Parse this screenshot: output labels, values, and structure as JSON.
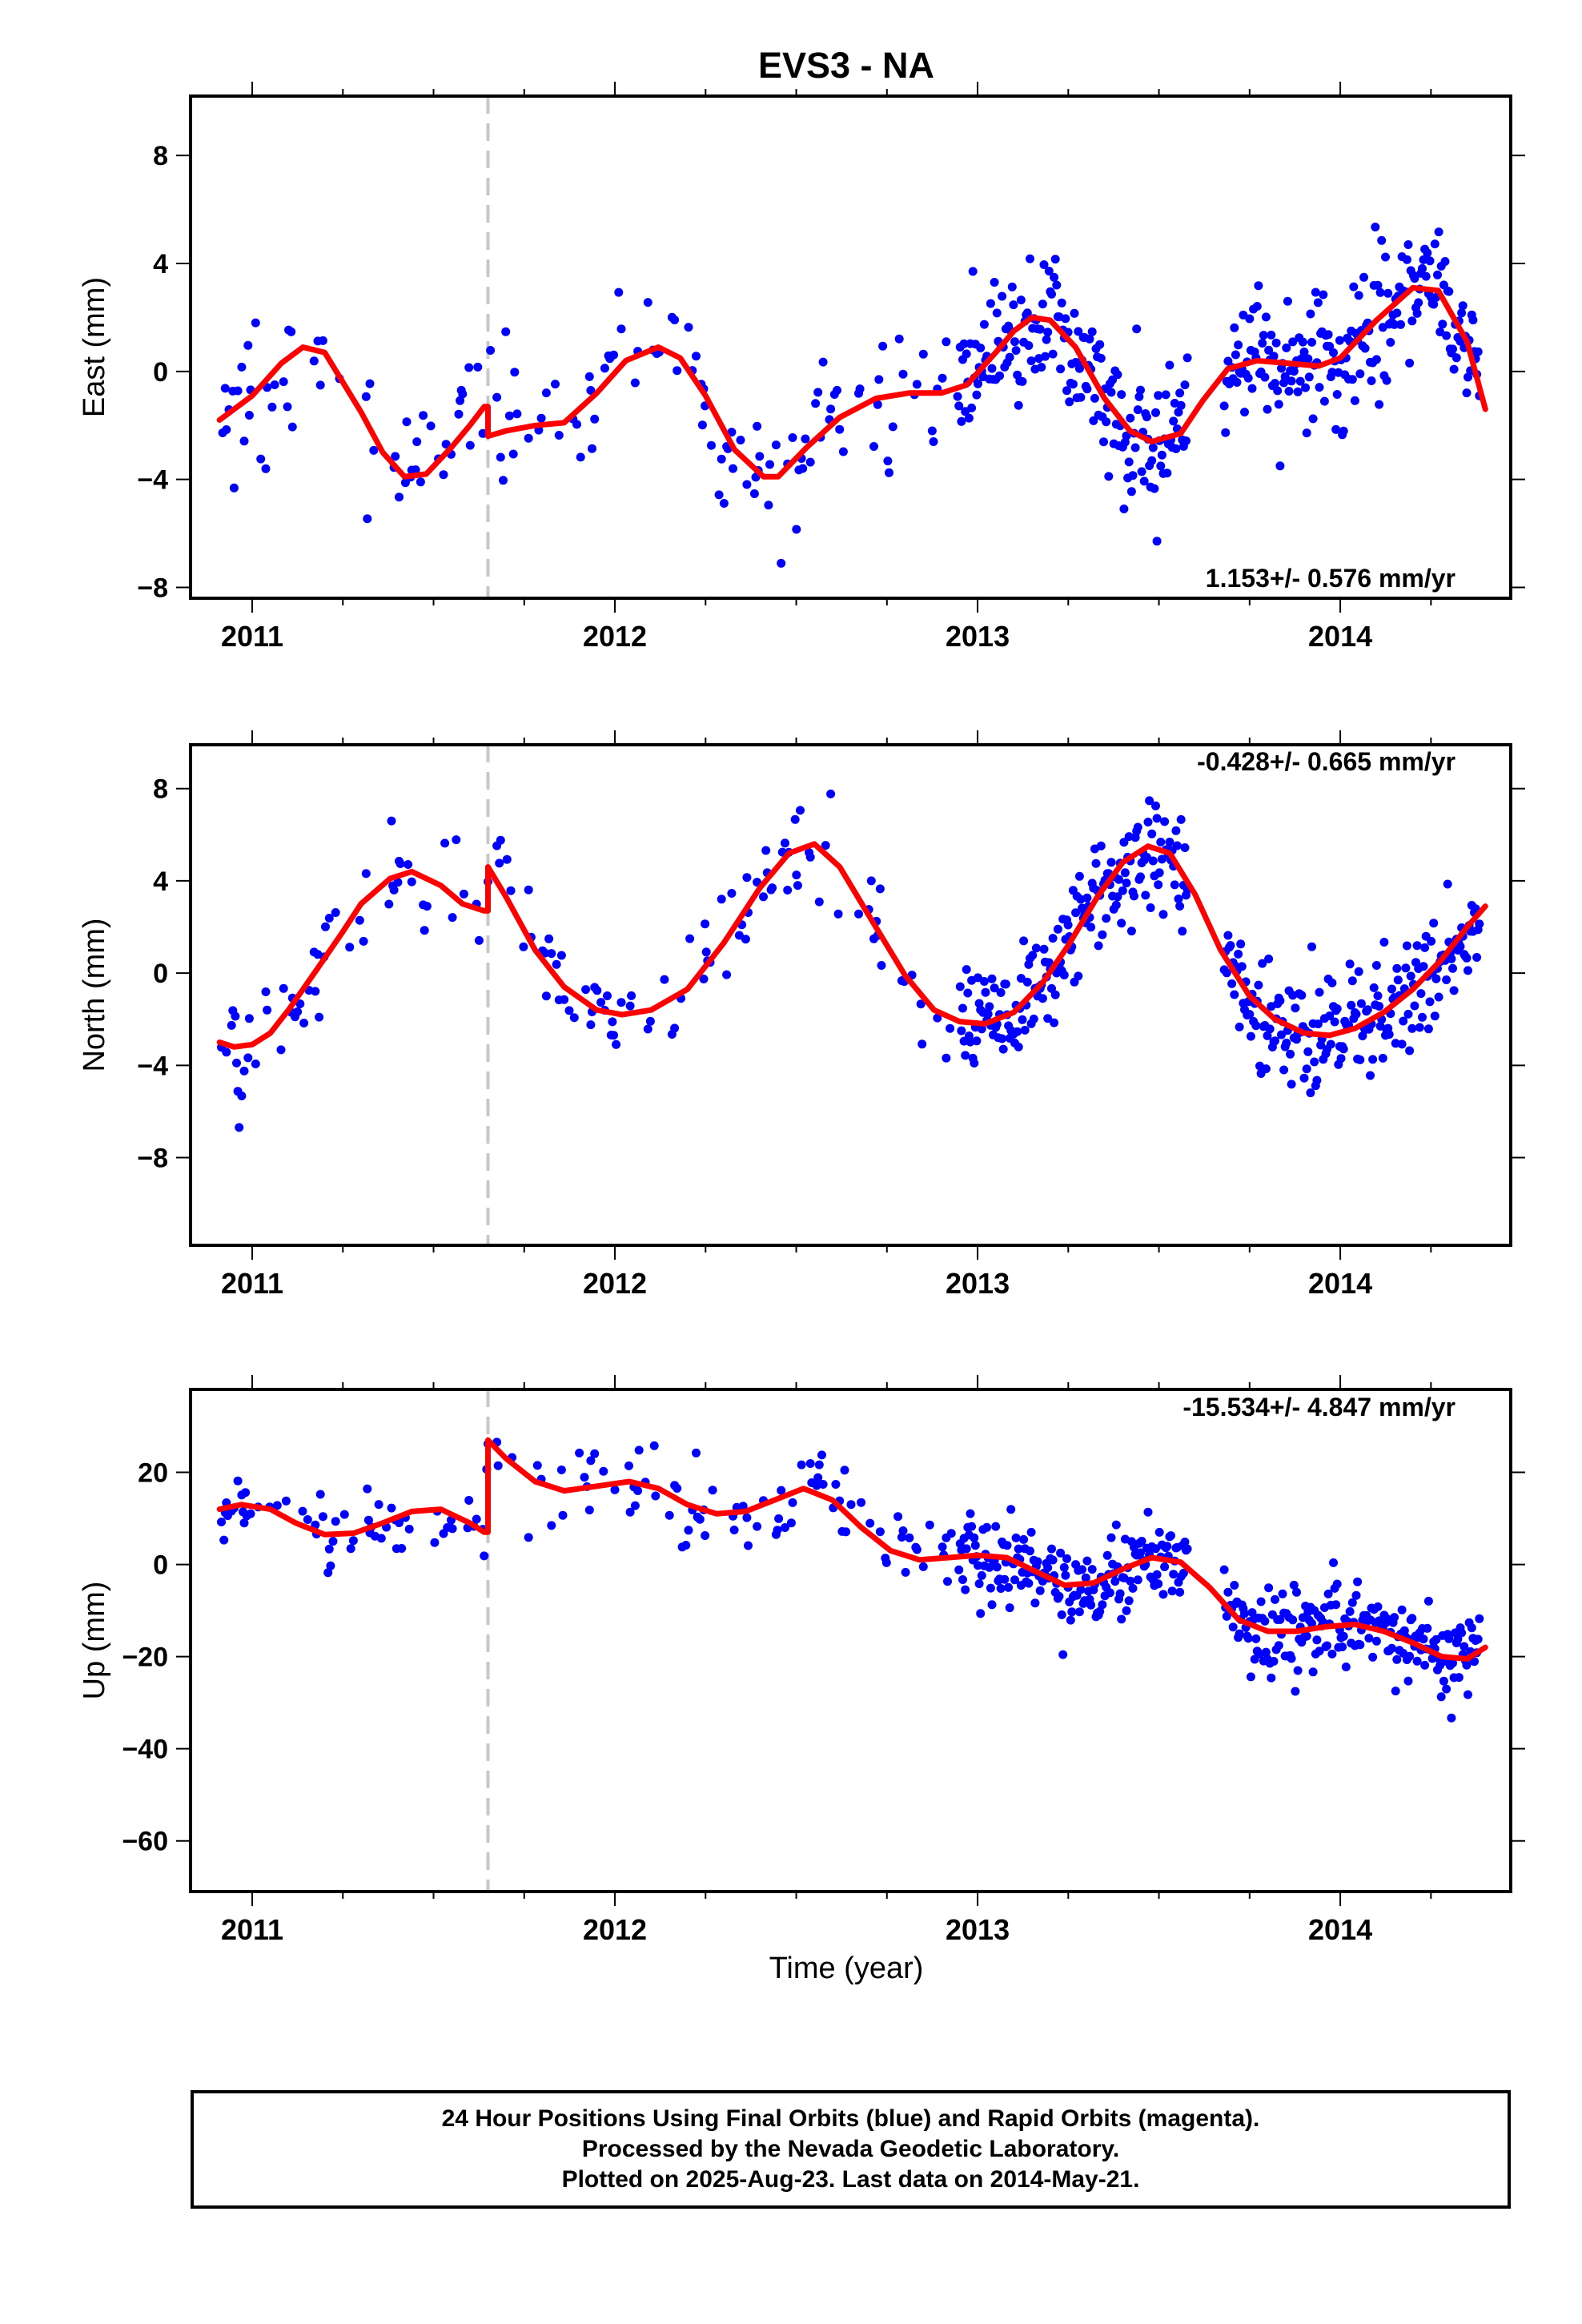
{
  "title": "EVS3 - NA",
  "xlabel": "Time (year)",
  "caption": [
    "24 Hour Positions Using Final Orbits (blue) and Rapid Orbits (magenta).",
    "Processed by the Nevada Geodetic Laboratory.",
    "Plotted on 2025-Aug-23. Last data on 2014-May-21."
  ],
  "colors": {
    "final_orbits": "#0000ff",
    "model_fit": "#ff0000",
    "equipment_change": "#c8c8c8"
  },
  "chart_data": [
    {
      "type": "scatter",
      "ylabel": "East (mm)",
      "rate_label": "1.153+/- 0.576 mm/yr",
      "xlim": [
        2010.83,
        2014.47
      ],
      "ylim": [
        -8.4,
        10.2
      ],
      "xticks": [
        2011,
        2012,
        2013,
        2014
      ],
      "yticks": [
        -8,
        -4,
        0,
        4,
        8
      ],
      "offset_year": 2011.65,
      "fit": {
        "x": [
          2010.91,
          2011.0,
          2011.08,
          2011.14,
          2011.2,
          2011.3,
          2011.36,
          2011.42,
          2011.48,
          2011.55,
          2011.6,
          2011.64,
          2011.65,
          2011.7,
          2011.78,
          2011.86,
          2011.95,
          2012.03,
          2012.12,
          2012.18,
          2012.25,
          2012.33,
          2012.41,
          2012.45,
          2012.53,
          2012.62,
          2012.72,
          2012.81,
          2012.9,
          2012.97,
          2013.05,
          2013.1,
          2013.15,
          2013.2,
          2013.27,
          2013.35,
          2013.42,
          2013.48,
          2013.56,
          2013.62,
          2013.69,
          2013.77,
          2013.86,
          2013.94,
          2014.0,
          2014.05,
          2014.1,
          2014.15,
          2014.2,
          2014.27,
          2014.35,
          2014.4
        ],
        "y": [
          -1.8,
          -0.9,
          0.3,
          0.9,
          0.7,
          -1.5,
          -3.0,
          -3.9,
          -3.8,
          -2.8,
          -2.0,
          -1.3,
          -2.4,
          -2.2,
          -2.0,
          -1.9,
          -0.8,
          0.4,
          0.9,
          0.5,
          -0.9,
          -2.9,
          -3.9,
          -3.9,
          -2.8,
          -1.7,
          -1.0,
          -0.8,
          -0.8,
          -0.5,
          0.7,
          1.5,
          2.0,
          1.9,
          0.9,
          -1.0,
          -2.2,
          -2.6,
          -2.3,
          -1.1,
          0.1,
          0.4,
          0.3,
          0.2,
          0.5,
          1.2,
          1.9,
          2.5,
          3.1,
          3.0,
          1.1,
          -1.4
        ]
      }
    },
    {
      "type": "scatter",
      "ylabel": "North (mm)",
      "rate_label": "-0.428+/- 0.665 mm/yr",
      "xlim": [
        2010.83,
        2014.47
      ],
      "ylim": [
        -11.8,
        9.9
      ],
      "xticks": [
        2011,
        2012,
        2013,
        2014
      ],
      "yticks": [
        -8,
        -4,
        0,
        4,
        8
      ],
      "offset_year": 2011.65,
      "fit": {
        "x": [
          2010.91,
          2010.95,
          2011.0,
          2011.05,
          2011.1,
          2011.18,
          2011.25,
          2011.3,
          2011.38,
          2011.44,
          2011.52,
          2011.58,
          2011.64,
          2011.65,
          2011.7,
          2011.78,
          2011.86,
          2011.95,
          2012.02,
          2012.1,
          2012.2,
          2012.3,
          2012.4,
          2012.48,
          2012.55,
          2012.62,
          2012.7,
          2012.8,
          2012.88,
          2012.95,
          2013.02,
          2013.1,
          2013.18,
          2013.25,
          2013.33,
          2013.4,
          2013.47,
          2013.53,
          2013.6,
          2013.67,
          2013.75,
          2013.82,
          2013.9,
          2013.97,
          2014.04,
          2014.12,
          2014.2,
          2014.28,
          2014.35,
          2014.4
        ],
        "y": [
          -3.0,
          -3.2,
          -3.1,
          -2.6,
          -1.6,
          0.2,
          1.8,
          3.0,
          4.1,
          4.4,
          3.8,
          3.0,
          2.7,
          4.6,
          3.3,
          1.0,
          -0.6,
          -1.6,
          -1.8,
          -1.6,
          -0.7,
          1.3,
          3.7,
          5.2,
          5.6,
          4.6,
          2.5,
          -0.1,
          -1.6,
          -2.1,
          -2.2,
          -1.7,
          -0.4,
          1.2,
          3.3,
          4.8,
          5.5,
          5.2,
          3.4,
          1.0,
          -1.0,
          -2.0,
          -2.6,
          -2.7,
          -2.4,
          -1.7,
          -0.7,
          0.6,
          2.0,
          2.9
        ]
      }
    },
    {
      "type": "scatter",
      "ylabel": "Up (mm)",
      "rate_label": "-15.534+/- 4.847 mm/yr",
      "xlim": [
        2010.83,
        2014.47
      ],
      "ylim": [
        -71,
        38
      ],
      "xticks": [
        2011,
        2012,
        2013,
        2014
      ],
      "yticks": [
        -60,
        -40,
        -20,
        0,
        20
      ],
      "offset_year": 2011.65,
      "fit": {
        "x": [
          2010.91,
          2010.97,
          2011.05,
          2011.12,
          2011.2,
          2011.28,
          2011.36,
          2011.44,
          2011.52,
          2011.6,
          2011.64,
          2011.65,
          2011.7,
          2011.78,
          2011.86,
          2011.95,
          2012.04,
          2012.12,
          2012.2,
          2012.28,
          2012.36,
          2012.44,
          2012.52,
          2012.6,
          2012.68,
          2012.76,
          2012.84,
          2012.92,
          2013.0,
          2013.08,
          2013.16,
          2013.24,
          2013.32,
          2013.4,
          2013.48,
          2013.56,
          2013.64,
          2013.72,
          2013.8,
          2013.88,
          2013.96,
          2014.04,
          2014.12,
          2014.2,
          2014.28,
          2014.35,
          2014.4
        ],
        "y": [
          12,
          13,
          12,
          9,
          6.5,
          6.8,
          9,
          11.5,
          12,
          9,
          7,
          27,
          23,
          18,
          16,
          17,
          18,
          16.5,
          13,
          11,
          11.5,
          14,
          16.5,
          14,
          8,
          3,
          1,
          1.5,
          2,
          1.5,
          -1.5,
          -4.5,
          -4,
          -1,
          1.5,
          0.5,
          -5,
          -12,
          -14.5,
          -14.5,
          -13.5,
          -13,
          -14.5,
          -17,
          -20,
          -20.5,
          -18
        ]
      }
    }
  ]
}
